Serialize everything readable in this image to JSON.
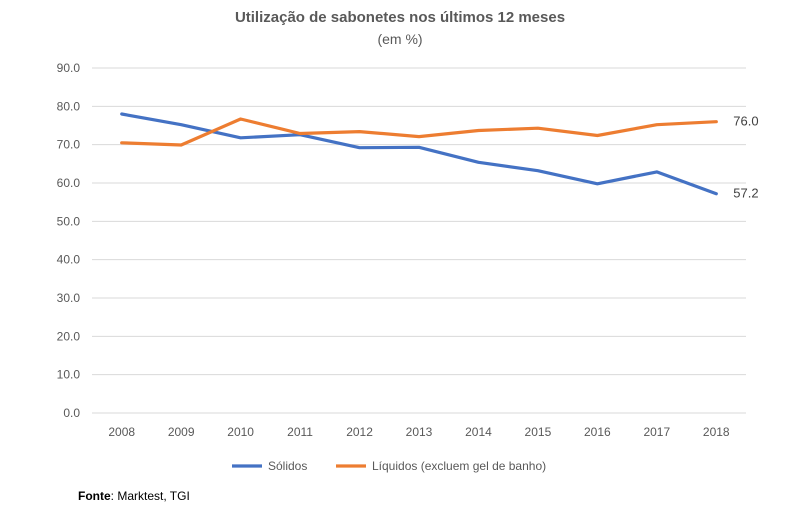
{
  "chart_data": {
    "type": "line",
    "title": "Utilização de sabonetes nos últimos 12 meses",
    "subtitle": "(em %)",
    "categories": [
      "2008",
      "2009",
      "2010",
      "2011",
      "2012",
      "2013",
      "2014",
      "2015",
      "2016",
      "2017",
      "2018"
    ],
    "y_ticks": [
      "0.0",
      "10.0",
      "20.0",
      "30.0",
      "40.0",
      "50.0",
      "60.0",
      "70.0",
      "80.0",
      "90.0"
    ],
    "ylim": [
      0,
      90
    ],
    "grid": true,
    "legend_position": "bottom",
    "series": [
      {
        "name": "Sólidos",
        "color": "#4472C4",
        "values": [
          78.0,
          75.2,
          71.8,
          72.6,
          69.2,
          69.3,
          65.4,
          63.2,
          59.8,
          62.9,
          57.2
        ],
        "end_label": "57.2"
      },
      {
        "name": "Líquidos (excluem gel de banho)",
        "color": "#ED7D31",
        "values": [
          70.5,
          69.9,
          76.7,
          72.9,
          73.4,
          72.1,
          73.7,
          74.3,
          72.4,
          75.2,
          76.0
        ],
        "end_label": "76.0"
      }
    ]
  },
  "source": {
    "label": "Fonte",
    "text": ": Marktest, TGI"
  }
}
